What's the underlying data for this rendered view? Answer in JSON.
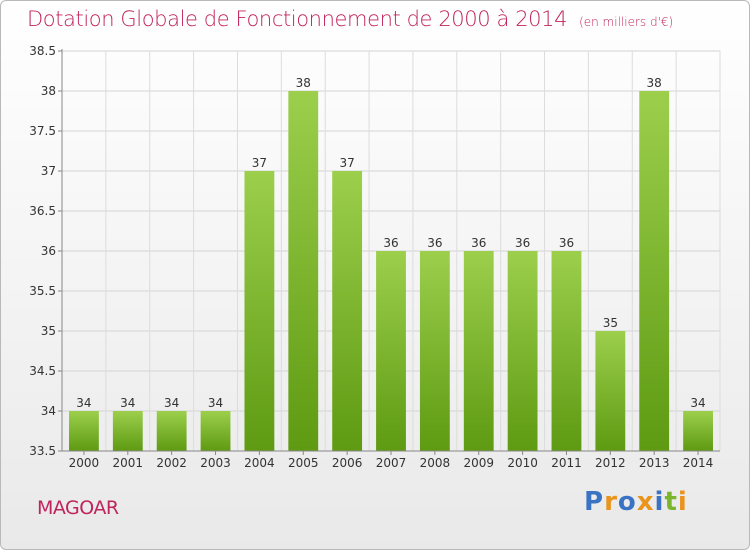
{
  "header": {
    "title": "Dotation Globale de Fonctionnement de 2000 à 2014",
    "unit": "(en milliers d'€)"
  },
  "footer": {
    "commune": "MAGOAR",
    "logo_text": "Proxiti"
  },
  "colors": {
    "accent": "#c0245c",
    "bar_top": "#9ccf4c",
    "bar_bottom": "#5e9a12",
    "logo": [
      "#3b73c4",
      "#e9941c",
      "#3b73c4",
      "#e9941c",
      "#3b73c4",
      "#7ab52c",
      "#e9941c"
    ]
  },
  "chart_data": {
    "type": "bar",
    "title": "Dotation Globale de Fonctionnement de 2000 à 2014",
    "subtitle": "(en milliers d'€)",
    "categories": [
      "2000",
      "2001",
      "2002",
      "2003",
      "2004",
      "2005",
      "2006",
      "2007",
      "2008",
      "2009",
      "2010",
      "2011",
      "2012",
      "2013",
      "2014"
    ],
    "values": [
      34,
      34,
      34,
      34,
      37,
      38,
      37,
      36,
      36,
      36,
      36,
      36,
      35,
      38,
      34
    ],
    "yticks": [
      "33.5",
      "34",
      "34.5",
      "35",
      "35.5",
      "36",
      "36.5",
      "37",
      "37.5",
      "38",
      "38.5"
    ],
    "ylim": [
      33.5,
      38.5
    ],
    "grid": true
  }
}
